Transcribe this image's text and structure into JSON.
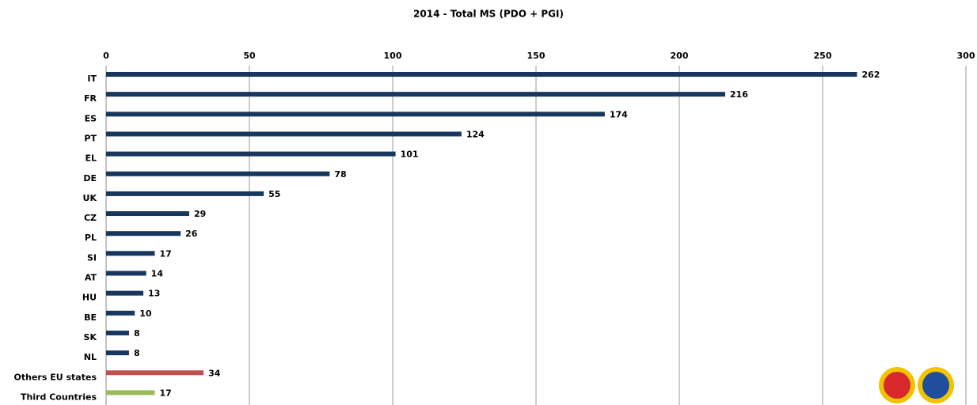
{
  "chart_data": {
    "type": "bar",
    "orientation": "horizontal",
    "title": "2014 - Total MS (PDO + PGI)",
    "categories": [
      "IT",
      "FR",
      "ES",
      "PT",
      "EL",
      "DE",
      "UK",
      "CZ",
      "PL",
      "SI",
      "AT",
      "HU",
      "BE",
      "SK",
      "NL",
      "Others EU states",
      "Third Countries"
    ],
    "values": [
      262,
      216,
      174,
      124,
      101,
      78,
      55,
      29,
      26,
      17,
      14,
      13,
      10,
      8,
      8,
      34,
      17
    ],
    "colors": [
      "#17375e",
      "#17375e",
      "#17375e",
      "#17375e",
      "#17375e",
      "#17375e",
      "#17375e",
      "#17375e",
      "#17375e",
      "#17375e",
      "#17375e",
      "#17375e",
      "#17375e",
      "#17375e",
      "#17375e",
      "#c0504d",
      "#9bbb59"
    ],
    "xlim": [
      0,
      300
    ],
    "xticks": [
      0,
      50,
      100,
      150,
      200,
      250,
      300
    ],
    "grid": true
  }
}
